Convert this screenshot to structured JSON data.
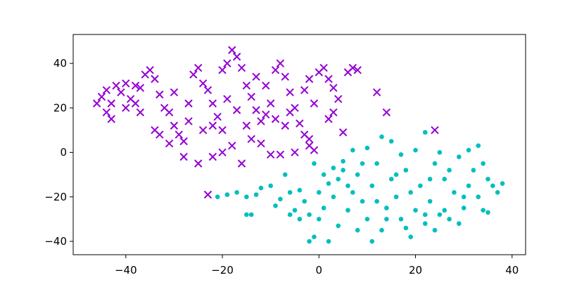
{
  "chart_data": {
    "type": "scatter",
    "xlim": [
      -50.9,
      42.8
    ],
    "ylim": [
      -46,
      53
    ],
    "xticks": [
      {
        "value": -40,
        "label": "−40"
      },
      {
        "value": -20,
        "label": "−20"
      },
      0,
      20,
      40
    ],
    "yticks": [
      {
        "value": -40,
        "label": "−40"
      },
      {
        "value": -20,
        "label": "−20"
      },
      0,
      20,
      40
    ],
    "series": [
      {
        "color": "#9400d3",
        "marker": "x",
        "x": [
          -45,
          -44,
          -43,
          -42,
          -41,
          -40,
          -39,
          -38,
          -37,
          -36,
          -35,
          -34,
          -33,
          -32,
          -31,
          -30,
          -29,
          -28,
          -27,
          -26,
          -25,
          -24,
          -23,
          -22,
          -21,
          -20,
          -19,
          -18,
          -17,
          -16,
          -15,
          -14,
          -13,
          -12,
          -11,
          -10,
          -9,
          -8,
          -7,
          -6,
          -5,
          -4,
          -3,
          -2,
          -1,
          0,
          1,
          2,
          3,
          4,
          5,
          6,
          7,
          8,
          12,
          14,
          24,
          -23,
          -33,
          -31,
          -28,
          -25,
          -22,
          -20,
          -18,
          -16,
          -14,
          -10,
          -8,
          -5,
          -2,
          -1,
          -44,
          -46,
          -43,
          -38,
          -30,
          -27,
          -24,
          -22,
          -19,
          -17,
          -13,
          -11,
          -9,
          -7,
          -6,
          -3,
          -2,
          2,
          3,
          -12,
          -20,
          -15,
          -34,
          -37,
          -40
        ],
        "values": [
          25,
          28,
          22,
          30,
          27,
          31,
          24,
          22,
          29,
          35,
          37,
          33,
          26,
          20,
          18,
          12,
          8,
          5,
          14,
          35,
          38,
          31,
          28,
          22,
          16,
          37,
          40,
          46,
          43,
          38,
          30,
          25,
          19,
          14,
          17,
          22,
          37,
          40,
          34,
          27,
          20,
          13,
          8,
          6,
          22,
          36,
          38,
          33,
          29,
          24,
          9,
          36,
          38,
          37,
          27,
          18,
          10,
          -19,
          8,
          4,
          -2,
          -5,
          -2,
          0,
          3,
          -5,
          6,
          -1,
          -1,
          0,
          3,
          1,
          18,
          22,
          15,
          30,
          27,
          22,
          10,
          12,
          24,
          19,
          34,
          30,
          15,
          12,
          18,
          28,
          33,
          15,
          18,
          4,
          10,
          12,
          10,
          18,
          20
        ]
      },
      {
        "color": "#00bfbf",
        "marker": "o",
        "x": [
          -21,
          -19,
          -17,
          -15,
          -13,
          -14,
          -12,
          -9,
          -8,
          -6,
          -5,
          -4,
          -3,
          -2,
          -1,
          0,
          1,
          2,
          3,
          4,
          5,
          6,
          7,
          8,
          9,
          10,
          11,
          12,
          13,
          14,
          15,
          16,
          17,
          18,
          19,
          20,
          21,
          22,
          23,
          24,
          25,
          26,
          27,
          28,
          29,
          30,
          31,
          32,
          33,
          34,
          35,
          36,
          37,
          38,
          31,
          33,
          25,
          22,
          20,
          17,
          15,
          13,
          10,
          7,
          5,
          3,
          1,
          -1,
          -4,
          -6,
          -2,
          4,
          8,
          11,
          14,
          18,
          22,
          24,
          26,
          29,
          35,
          -10,
          -7,
          6,
          12,
          16,
          19,
          23,
          27,
          30,
          34,
          -15,
          2,
          0,
          9
        ],
        "values": [
          -20,
          -19,
          -18,
          -20,
          -19,
          -28,
          -16,
          -24,
          -21,
          -18,
          -26,
          -30,
          -22,
          -40,
          -38,
          -30,
          -25,
          -14,
          -20,
          -12,
          -8,
          -26,
          -18,
          -10,
          -22,
          -30,
          -15,
          -5,
          -35,
          -25,
          -12,
          -20,
          -30,
          -8,
          -38,
          -26,
          -15,
          -32,
          -22,
          -5,
          -28,
          -12,
          -30,
          -18,
          -2,
          -25,
          -15,
          -8,
          -20,
          -26,
          -12,
          -15,
          -18,
          -14,
          1,
          3,
          0,
          9,
          1,
          -1,
          5,
          7,
          2,
          1,
          -4,
          -7,
          -10,
          -5,
          -17,
          -28,
          -28,
          -33,
          -35,
          -40,
          -30,
          -34,
          -28,
          -35,
          -26,
          -32,
          -27,
          -15,
          -10,
          -15,
          -22,
          -10,
          -18,
          -12,
          -8,
          -20,
          -5,
          -28,
          -40,
          -18,
          -5
        ]
      }
    ]
  }
}
